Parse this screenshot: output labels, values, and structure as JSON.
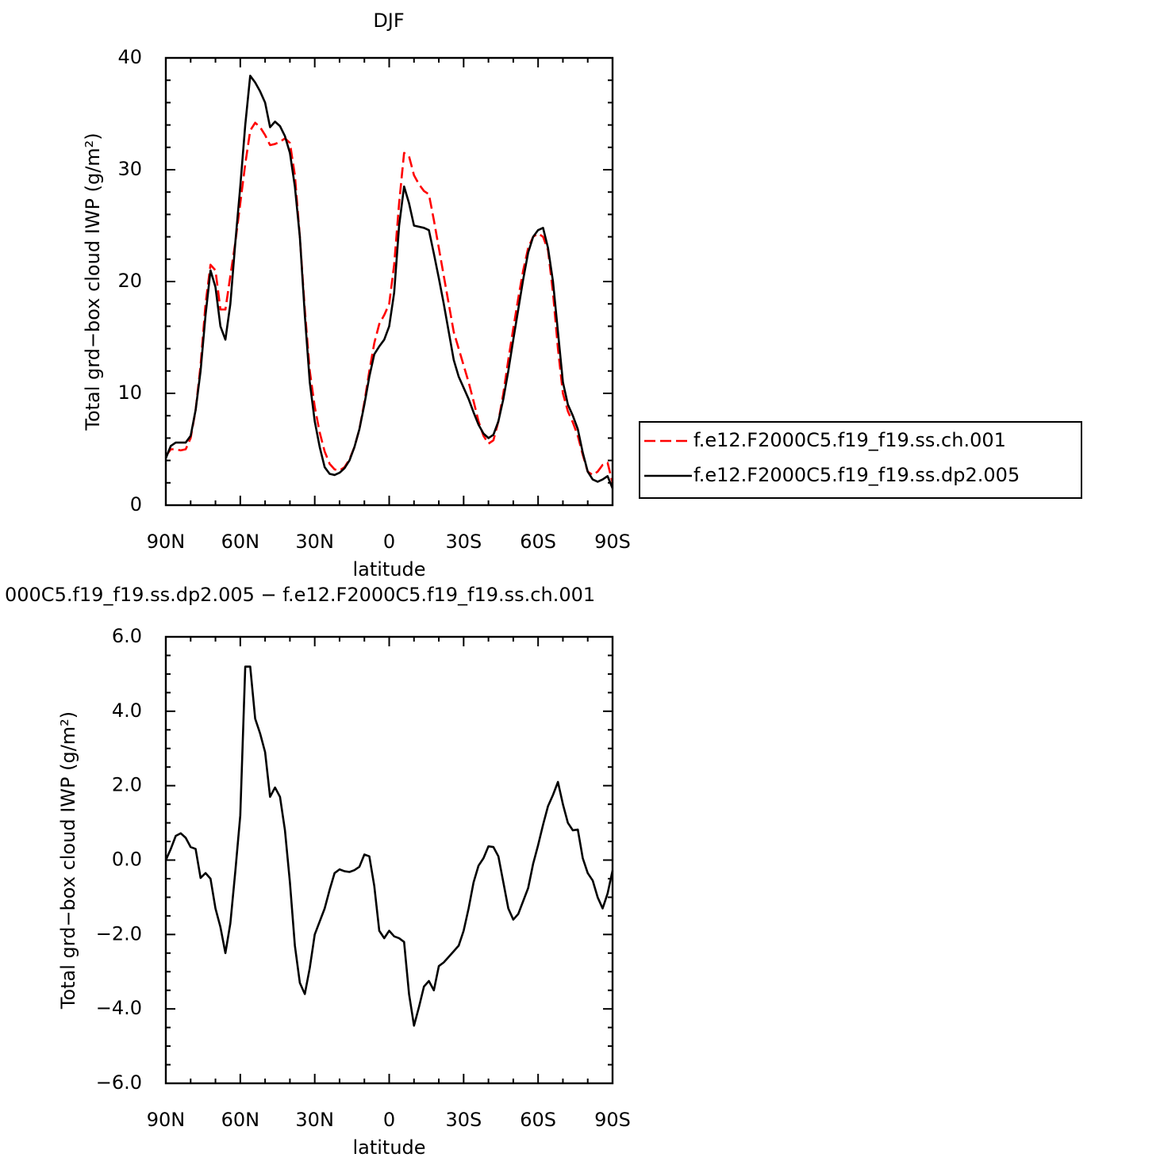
{
  "chart_data": [
    {
      "type": "line",
      "title": "DJF",
      "xlabel": "latitude",
      "ylabel": "Total grd−box cloud IWP (g/m²)",
      "x": [
        90,
        88,
        86,
        84,
        82,
        80,
        78,
        76,
        74,
        72,
        70,
        68,
        66,
        64,
        62,
        60,
        58,
        56,
        54,
        52,
        50,
        48,
        46,
        44,
        42,
        40,
        38,
        36,
        34,
        32,
        30,
        28,
        26,
        24,
        22,
        20,
        18,
        16,
        14,
        12,
        10,
        8,
        6,
        4,
        2,
        0,
        -2,
        -4,
        -6,
        -8,
        -10,
        -12,
        -14,
        -16,
        -18,
        -20,
        -22,
        -24,
        -26,
        -28,
        -30,
        -32,
        -34,
        -36,
        -38,
        -40,
        -42,
        -44,
        -46,
        -48,
        -50,
        -52,
        -54,
        -56,
        -58,
        -60,
        -62,
        -64,
        -66,
        -68,
        -70,
        -72,
        -74,
        -76,
        -78,
        -80,
        -82,
        -84,
        -86,
        -88,
        -90
      ],
      "xlim": [
        90,
        -90
      ],
      "xticks": [
        {
          "value": 90,
          "label": "90N"
        },
        {
          "value": 60,
          "label": "60N"
        },
        {
          "value": 30,
          "label": "30N"
        },
        0,
        {
          "value": -30,
          "label": "30S"
        },
        {
          "value": -60,
          "label": "60S"
        },
        {
          "value": -90,
          "label": "90S"
        }
      ],
      "ylim": [
        0,
        40
      ],
      "yticks": [
        0,
        10,
        20,
        30,
        40
      ],
      "legend": "right",
      "series": [
        {
          "name": "f.e12.F2000C5.f19_f19.ss.ch.001",
          "color": "#ff0000",
          "linestyle": "dashed",
          "values": [
            4.4,
            5.0,
            5.0,
            4.9,
            5.0,
            6.0,
            8.5,
            12.5,
            18,
            21.5,
            21,
            17.5,
            17.5,
            20.5,
            23.5,
            27,
            30.5,
            33.5,
            34.2,
            33.8,
            33.1,
            32.2,
            32.3,
            32.5,
            32.8,
            32.4,
            29.5,
            24,
            17.5,
            12,
            8.8,
            6.5,
            4.8,
            3.7,
            3.2,
            3.1,
            3.4,
            4.1,
            5.2,
            6.8,
            9.2,
            12,
            14.5,
            16.2,
            17,
            18,
            21.5,
            27,
            31.5,
            31.2,
            29.5,
            28.7,
            28.1,
            27.8,
            25.5,
            23,
            20.5,
            18,
            15.5,
            14,
            12.5,
            11,
            9.3,
            7.5,
            6.2,
            5.5,
            5.8,
            7.5,
            10,
            13,
            15.8,
            18.5,
            21,
            23,
            24,
            24.3,
            24,
            22.8,
            19,
            14,
            10,
            8.4,
            7.4,
            6.2,
            4.5,
            3,
            2.7,
            3.0,
            3.6,
            3.8,
            2
          ]
        },
        {
          "name": "f.e12.F2000C5.f19_f19.ss.dp2.005",
          "color": "#000000",
          "linestyle": "solid",
          "values": [
            4.2,
            5.3,
            5.6,
            5.6,
            5.6,
            6.2,
            8.5,
            12,
            17,
            21,
            19.5,
            16,
            14.8,
            18,
            23.5,
            28.5,
            34,
            38.4,
            37.8,
            37,
            36,
            33.8,
            34.3,
            33.9,
            33,
            31.5,
            28.5,
            24,
            17,
            11,
            7.5,
            5.2,
            3.4,
            2.8,
            2.7,
            2.9,
            3.3,
            4,
            5.2,
            6.8,
            9,
            11.5,
            13.5,
            14.2,
            14.8,
            16,
            19,
            25,
            28.5,
            27,
            25,
            24.9,
            24.8,
            24.6,
            22.5,
            20.3,
            18,
            15.5,
            13,
            11.5,
            10.5,
            9.5,
            8.3,
            7.2,
            6.4,
            6,
            6.3,
            7.5,
            9.5,
            12,
            14.8,
            17.5,
            20.2,
            22.6,
            24,
            24.6,
            24.8,
            23,
            20,
            15.5,
            11,
            9,
            8,
            6.8,
            4.7,
            3,
            2.3,
            2.1,
            2.3,
            2.6,
            1.5
          ]
        }
      ]
    },
    {
      "type": "line",
      "title": "000C5.f19_f19.ss.dp2.005 − f.e12.F2000C5.f19_f19.ss.ch.001",
      "xlabel": "latitude",
      "ylabel": "Total grd−box cloud IWP (g/m²)",
      "x": [
        90,
        88,
        86,
        84,
        82,
        80,
        78,
        76,
        74,
        72,
        70,
        68,
        66,
        64,
        62,
        60,
        58,
        56,
        54,
        52,
        50,
        48,
        46,
        44,
        42,
        40,
        38,
        36,
        34,
        32,
        30,
        28,
        26,
        24,
        22,
        20,
        18,
        16,
        14,
        12,
        10,
        8,
        6,
        4,
        2,
        0,
        -2,
        -4,
        -6,
        -8,
        -10,
        -12,
        -14,
        -16,
        -18,
        -20,
        -22,
        -24,
        -26,
        -28,
        -30,
        -32,
        -34,
        -36,
        -38,
        -40,
        -42,
        -44,
        -46,
        -48,
        -50,
        -52,
        -54,
        -56,
        -58,
        -60,
        -62,
        -64,
        -66,
        -68,
        -70,
        -72,
        -74,
        -76,
        -78,
        -80,
        -82,
        -84,
        -86,
        -88,
        -90
      ],
      "xlim": [
        90,
        -90
      ],
      "xticks": [
        {
          "value": 90,
          "label": "90N"
        },
        {
          "value": 60,
          "label": "60N"
        },
        {
          "value": 30,
          "label": "30N"
        },
        0,
        {
          "value": -30,
          "label": "30S"
        },
        {
          "value": -60,
          "label": "60S"
        },
        {
          "value": -90,
          "label": "90S"
        }
      ],
      "ylim": [
        -6,
        6
      ],
      "yticks": [
        {
          "value": -6,
          "label": "−6.0"
        },
        {
          "value": -4,
          "label": "−4.0"
        },
        {
          "value": -2,
          "label": "−2.0"
        },
        {
          "value": 0,
          "label": "0.0"
        },
        {
          "value": 2,
          "label": "2.0"
        },
        {
          "value": 4,
          "label": "4.0"
        },
        {
          "value": 6,
          "label": "6.0"
        }
      ],
      "color": "#000000",
      "values": [
        0.0,
        0.3,
        0.65,
        0.72,
        0.6,
        0.35,
        0.3,
        -0.48,
        -0.35,
        -0.5,
        -1.3,
        -1.8,
        -2.5,
        -1.7,
        -0.3,
        1.2,
        5.2,
        5.2,
        3.8,
        3.4,
        2.9,
        1.7,
        1.95,
        1.7,
        0.8,
        -0.6,
        -2.3,
        -3.3,
        -3.6,
        -2.9,
        -2.0,
        -1.65,
        -1.3,
        -0.8,
        -0.35,
        -0.25,
        -0.3,
        -0.32,
        -0.27,
        -0.18,
        0.15,
        0.1,
        -0.7,
        -1.9,
        -2.1,
        -1.9,
        -2.05,
        -2.1,
        -2.2,
        -3.6,
        -4.45,
        -3.95,
        -3.4,
        -3.25,
        -3.5,
        -2.85,
        -2.75,
        -2.6,
        -2.45,
        -2.3,
        -1.9,
        -1.3,
        -0.6,
        -0.15,
        0.05,
        0.37,
        0.35,
        0.1,
        -0.6,
        -1.3,
        -1.6,
        -1.45,
        -1.1,
        -0.75,
        -0.1,
        0.4,
        0.95,
        1.45,
        1.75,
        2.1,
        1.5,
        1.0,
        0.8,
        0.82,
        0.05,
        -0.35,
        -0.55,
        -1.0,
        -1.3,
        -0.9,
        -0.28
      ]
    }
  ]
}
